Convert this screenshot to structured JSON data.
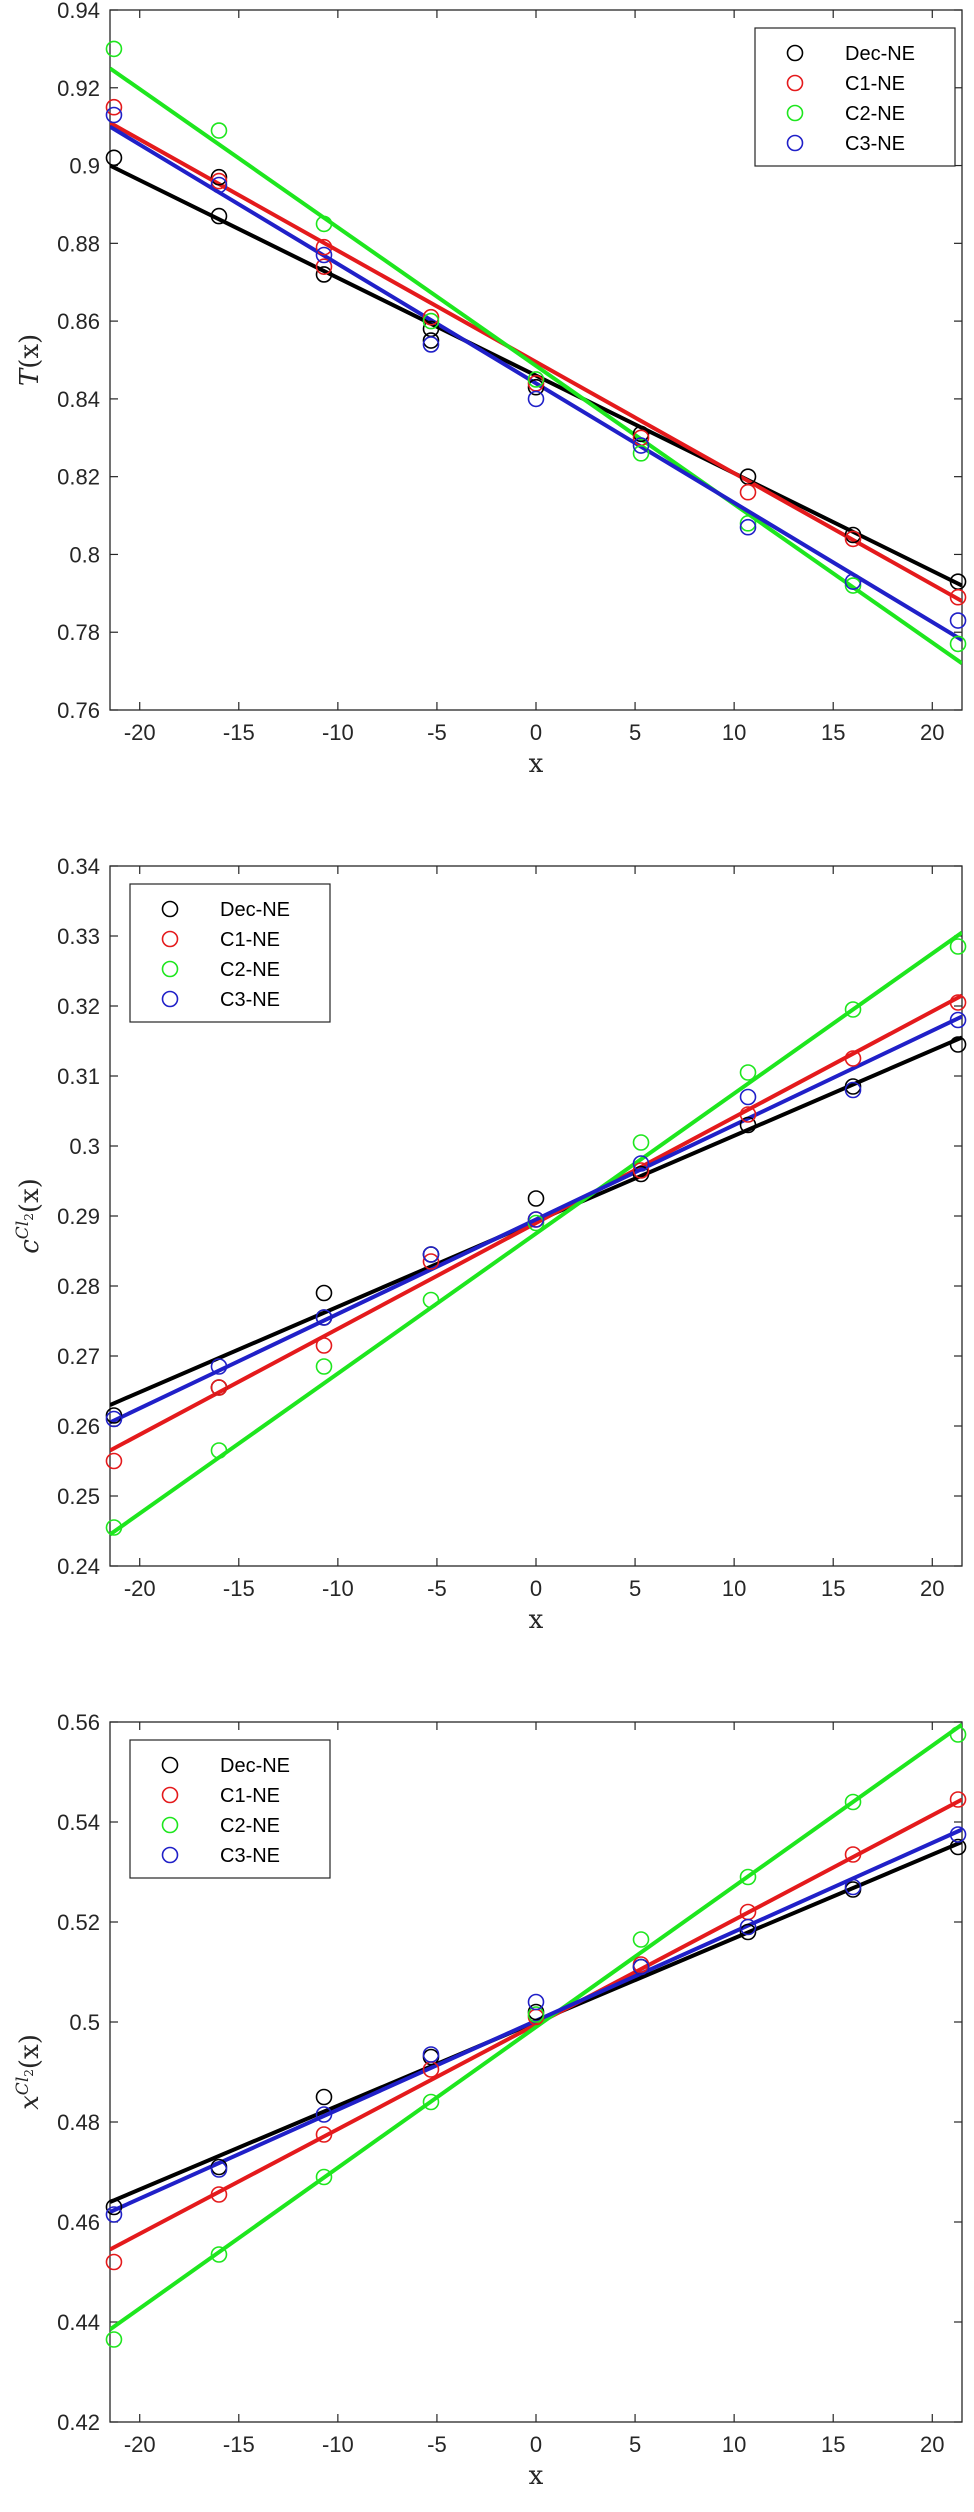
{
  "colors": {
    "Dec-NE": "#000000",
    "C1-NE": "#e41a1c",
    "C2-NE": "#1ee61e",
    "C3-NE": "#2020c8"
  },
  "chart_data": [
    {
      "type": "scatter",
      "xlabel": "x",
      "ylabel": "T(x)",
      "xlim": [
        -21.5,
        21.5
      ],
      "ylim": [
        0.76,
        0.94
      ],
      "xticks": [
        -20,
        -15,
        -10,
        -5,
        0,
        5,
        10,
        15,
        20
      ],
      "yticks": [
        0.76,
        0.78,
        0.8,
        0.82,
        0.84,
        0.86,
        0.88,
        0.9,
        0.92,
        0.94
      ],
      "ytick_labels": [
        "0.76",
        "0.78",
        "0.8",
        "0.82",
        "0.84",
        "0.86",
        "0.88",
        "0.9",
        "0.92",
        "0.94"
      ],
      "legend": {
        "position": "top-right",
        "entries": [
          "Dec-NE",
          "C1-NE",
          "C2-NE",
          "C3-NE"
        ]
      },
      "x": [
        -21.3,
        -16,
        -10.7,
        -5.3,
        0,
        5.3,
        10.7,
        16,
        21.3
      ],
      "series": [
        {
          "name": "Dec-NE",
          "points": [
            [
              -21.3,
              0.902
            ],
            [
              -16,
              0.887
            ],
            [
              -16,
              0.897
            ],
            [
              -10.7,
              0.872
            ],
            [
              -5.3,
              0.855
            ],
            [
              -5.3,
              0.858
            ],
            [
              0,
              0.843
            ],
            [
              5.3,
              0.831
            ],
            [
              10.7,
              0.82
            ],
            [
              16,
              0.805
            ],
            [
              21.3,
              0.793
            ]
          ],
          "fit": [
            [
              -21.5,
              0.9
            ],
            [
              21.5,
              0.792
            ]
          ]
        },
        {
          "name": "C1-NE",
          "points": [
            [
              -21.3,
              0.915
            ],
            [
              -16,
              0.896
            ],
            [
              -10.7,
              0.874
            ],
            [
              -10.7,
              0.879
            ],
            [
              -5.3,
              0.861
            ],
            [
              0,
              0.844
            ],
            [
              5.3,
              0.83
            ],
            [
              10.7,
              0.816
            ],
            [
              16,
              0.804
            ],
            [
              21.3,
              0.789
            ]
          ],
          "fit": [
            [
              -21.5,
              0.911
            ],
            [
              21.5,
              0.788
            ]
          ]
        },
        {
          "name": "C2-NE",
          "points": [
            [
              -21.3,
              0.93
            ],
            [
              -16,
              0.909
            ],
            [
              -10.7,
              0.885
            ],
            [
              -5.3,
              0.86
            ],
            [
              0,
              0.845
            ],
            [
              5.3,
              0.826
            ],
            [
              10.7,
              0.808
            ],
            [
              16,
              0.792
            ],
            [
              21.3,
              0.777
            ]
          ],
          "fit": [
            [
              -21.5,
              0.925
            ],
            [
              21.5,
              0.772
            ]
          ]
        },
        {
          "name": "C3-NE",
          "points": [
            [
              -21.3,
              0.913
            ],
            [
              -16,
              0.895
            ],
            [
              -10.7,
              0.877
            ],
            [
              -5.3,
              0.854
            ],
            [
              0,
              0.84
            ],
            [
              5.3,
              0.828
            ],
            [
              10.7,
              0.807
            ],
            [
              16,
              0.793
            ],
            [
              21.3,
              0.783
            ]
          ],
          "fit": [
            [
              -21.5,
              0.91
            ],
            [
              21.5,
              0.778
            ]
          ]
        }
      ]
    },
    {
      "type": "scatter",
      "xlabel": "x",
      "ylabel": "c^{Cl_2}(x)",
      "xlim": [
        -21.5,
        21.5
      ],
      "ylim": [
        0.24,
        0.34
      ],
      "xticks": [
        -20,
        -15,
        -10,
        -5,
        0,
        5,
        10,
        15,
        20
      ],
      "yticks": [
        0.24,
        0.25,
        0.26,
        0.27,
        0.28,
        0.29,
        0.3,
        0.31,
        0.32,
        0.33,
        0.34
      ],
      "ytick_labels": [
        "0.24",
        "0.25",
        "0.26",
        "0.27",
        "0.28",
        "0.29",
        "0.3",
        "0.31",
        "0.32",
        "0.33",
        "0.34"
      ],
      "legend": {
        "position": "top-left",
        "entries": [
          "Dec-NE",
          "C1-NE",
          "C2-NE",
          "C3-NE"
        ]
      },
      "x": [
        -21.3,
        -16,
        -10.7,
        -5.3,
        0,
        5.3,
        10.7,
        16,
        21.3
      ],
      "series": [
        {
          "name": "Dec-NE",
          "points": [
            [
              -21.3,
              0.2615
            ],
            [
              -16,
              0.2655
            ],
            [
              -10.7,
              0.279
            ],
            [
              -10.7,
              0.2755
            ],
            [
              -5.3,
              0.2845
            ],
            [
              0,
              0.2925
            ],
            [
              5.3,
              0.296
            ],
            [
              10.7,
              0.303
            ],
            [
              16,
              0.3085
            ],
            [
              21.3,
              0.3145
            ]
          ],
          "fit": [
            [
              -21.5,
              0.263
            ],
            [
              21.5,
              0.3155
            ]
          ]
        },
        {
          "name": "C1-NE",
          "points": [
            [
              -21.3,
              0.255
            ],
            [
              -16,
              0.2655
            ],
            [
              -10.7,
              0.2715
            ],
            [
              -5.3,
              0.2835
            ],
            [
              0,
              0.2895
            ],
            [
              5.3,
              0.2965
            ],
            [
              10.7,
              0.3045
            ],
            [
              16,
              0.3125
            ],
            [
              21.3,
              0.3205
            ]
          ],
          "fit": [
            [
              -21.5,
              0.2565
            ],
            [
              21.5,
              0.3215
            ]
          ]
        },
        {
          "name": "C2-NE",
          "points": [
            [
              -21.3,
              0.2455
            ],
            [
              -16,
              0.2565
            ],
            [
              -10.7,
              0.2685
            ],
            [
              -5.3,
              0.278
            ],
            [
              0,
              0.289
            ],
            [
              5.3,
              0.3005
            ],
            [
              10.7,
              0.3105
            ],
            [
              16,
              0.3195
            ],
            [
              21.3,
              0.3285
            ]
          ],
          "fit": [
            [
              -21.5,
              0.2445
            ],
            [
              21.5,
              0.3305
            ]
          ]
        },
        {
          "name": "C3-NE",
          "points": [
            [
              -21.3,
              0.261
            ],
            [
              -16,
              0.2685
            ],
            [
              -10.7,
              0.2755
            ],
            [
              -5.3,
              0.2845
            ],
            [
              0,
              0.2895
            ],
            [
              5.3,
              0.2975
            ],
            [
              10.7,
              0.307
            ],
            [
              16,
              0.308
            ],
            [
              21.3,
              0.318
            ]
          ],
          "fit": [
            [
              -21.5,
              0.2605
            ],
            [
              21.5,
              0.3185
            ]
          ]
        }
      ]
    },
    {
      "type": "scatter",
      "xlabel": "x",
      "ylabel": "x^{Cl_2}(x)",
      "xlim": [
        -21.5,
        21.5
      ],
      "ylim": [
        0.42,
        0.56
      ],
      "xticks": [
        -20,
        -15,
        -10,
        -5,
        0,
        5,
        10,
        15,
        20
      ],
      "yticks": [
        0.42,
        0.44,
        0.46,
        0.48,
        0.5,
        0.52,
        0.54,
        0.56
      ],
      "ytick_labels": [
        "0.42",
        "0.44",
        "0.46",
        "0.48",
        "0.5",
        "0.52",
        "0.54",
        "0.56"
      ],
      "legend": {
        "position": "top-left",
        "entries": [
          "Dec-NE",
          "C1-NE",
          "C2-NE",
          "C3-NE"
        ]
      },
      "x": [
        -21.3,
        -16,
        -10.7,
        -5.3,
        0,
        5.3,
        10.7,
        16,
        21.3
      ],
      "series": [
        {
          "name": "Dec-NE",
          "points": [
            [
              -21.3,
              0.463
            ],
            [
              -16,
              0.471
            ],
            [
              -10.7,
              0.485
            ],
            [
              -5.3,
              0.493
            ],
            [
              0,
              0.502
            ],
            [
              5.3,
              0.511
            ],
            [
              10.7,
              0.518
            ],
            [
              16,
              0.5265
            ],
            [
              21.3,
              0.535
            ]
          ],
          "fit": [
            [
              -21.5,
              0.464
            ],
            [
              21.5,
              0.536
            ]
          ]
        },
        {
          "name": "C1-NE",
          "points": [
            [
              -21.3,
              0.452
            ],
            [
              -16,
              0.4655
            ],
            [
              -10.7,
              0.4775
            ],
            [
              -5.3,
              0.4905
            ],
            [
              0,
              0.501
            ],
            [
              5.3,
              0.5115
            ],
            [
              10.7,
              0.522
            ],
            [
              16,
              0.5335
            ],
            [
              21.3,
              0.5445
            ]
          ],
          "fit": [
            [
              -21.5,
              0.4545
            ],
            [
              21.5,
              0.5445
            ]
          ]
        },
        {
          "name": "C2-NE",
          "points": [
            [
              -21.3,
              0.4365
            ],
            [
              -16,
              0.4535
            ],
            [
              -10.7,
              0.469
            ],
            [
              -5.3,
              0.484
            ],
            [
              0,
              0.5015
            ],
            [
              5.3,
              0.5165
            ],
            [
              10.7,
              0.529
            ],
            [
              16,
              0.544
            ],
            [
              21.3,
              0.5575
            ]
          ],
          "fit": [
            [
              -21.5,
              0.4385
            ],
            [
              21.5,
              0.5595
            ]
          ]
        },
        {
          "name": "C3-NE",
          "points": [
            [
              -21.3,
              0.4615
            ],
            [
              -16,
              0.4705
            ],
            [
              -10.7,
              0.4815
            ],
            [
              -5.3,
              0.4935
            ],
            [
              0,
              0.504
            ],
            [
              5.3,
              0.511
            ],
            [
              10.7,
              0.519
            ],
            [
              16,
              0.527
            ],
            [
              21.3,
              0.5375
            ]
          ],
          "fit": [
            [
              -21.5,
              0.462
            ],
            [
              21.5,
              0.5385
            ]
          ]
        }
      ]
    }
  ]
}
